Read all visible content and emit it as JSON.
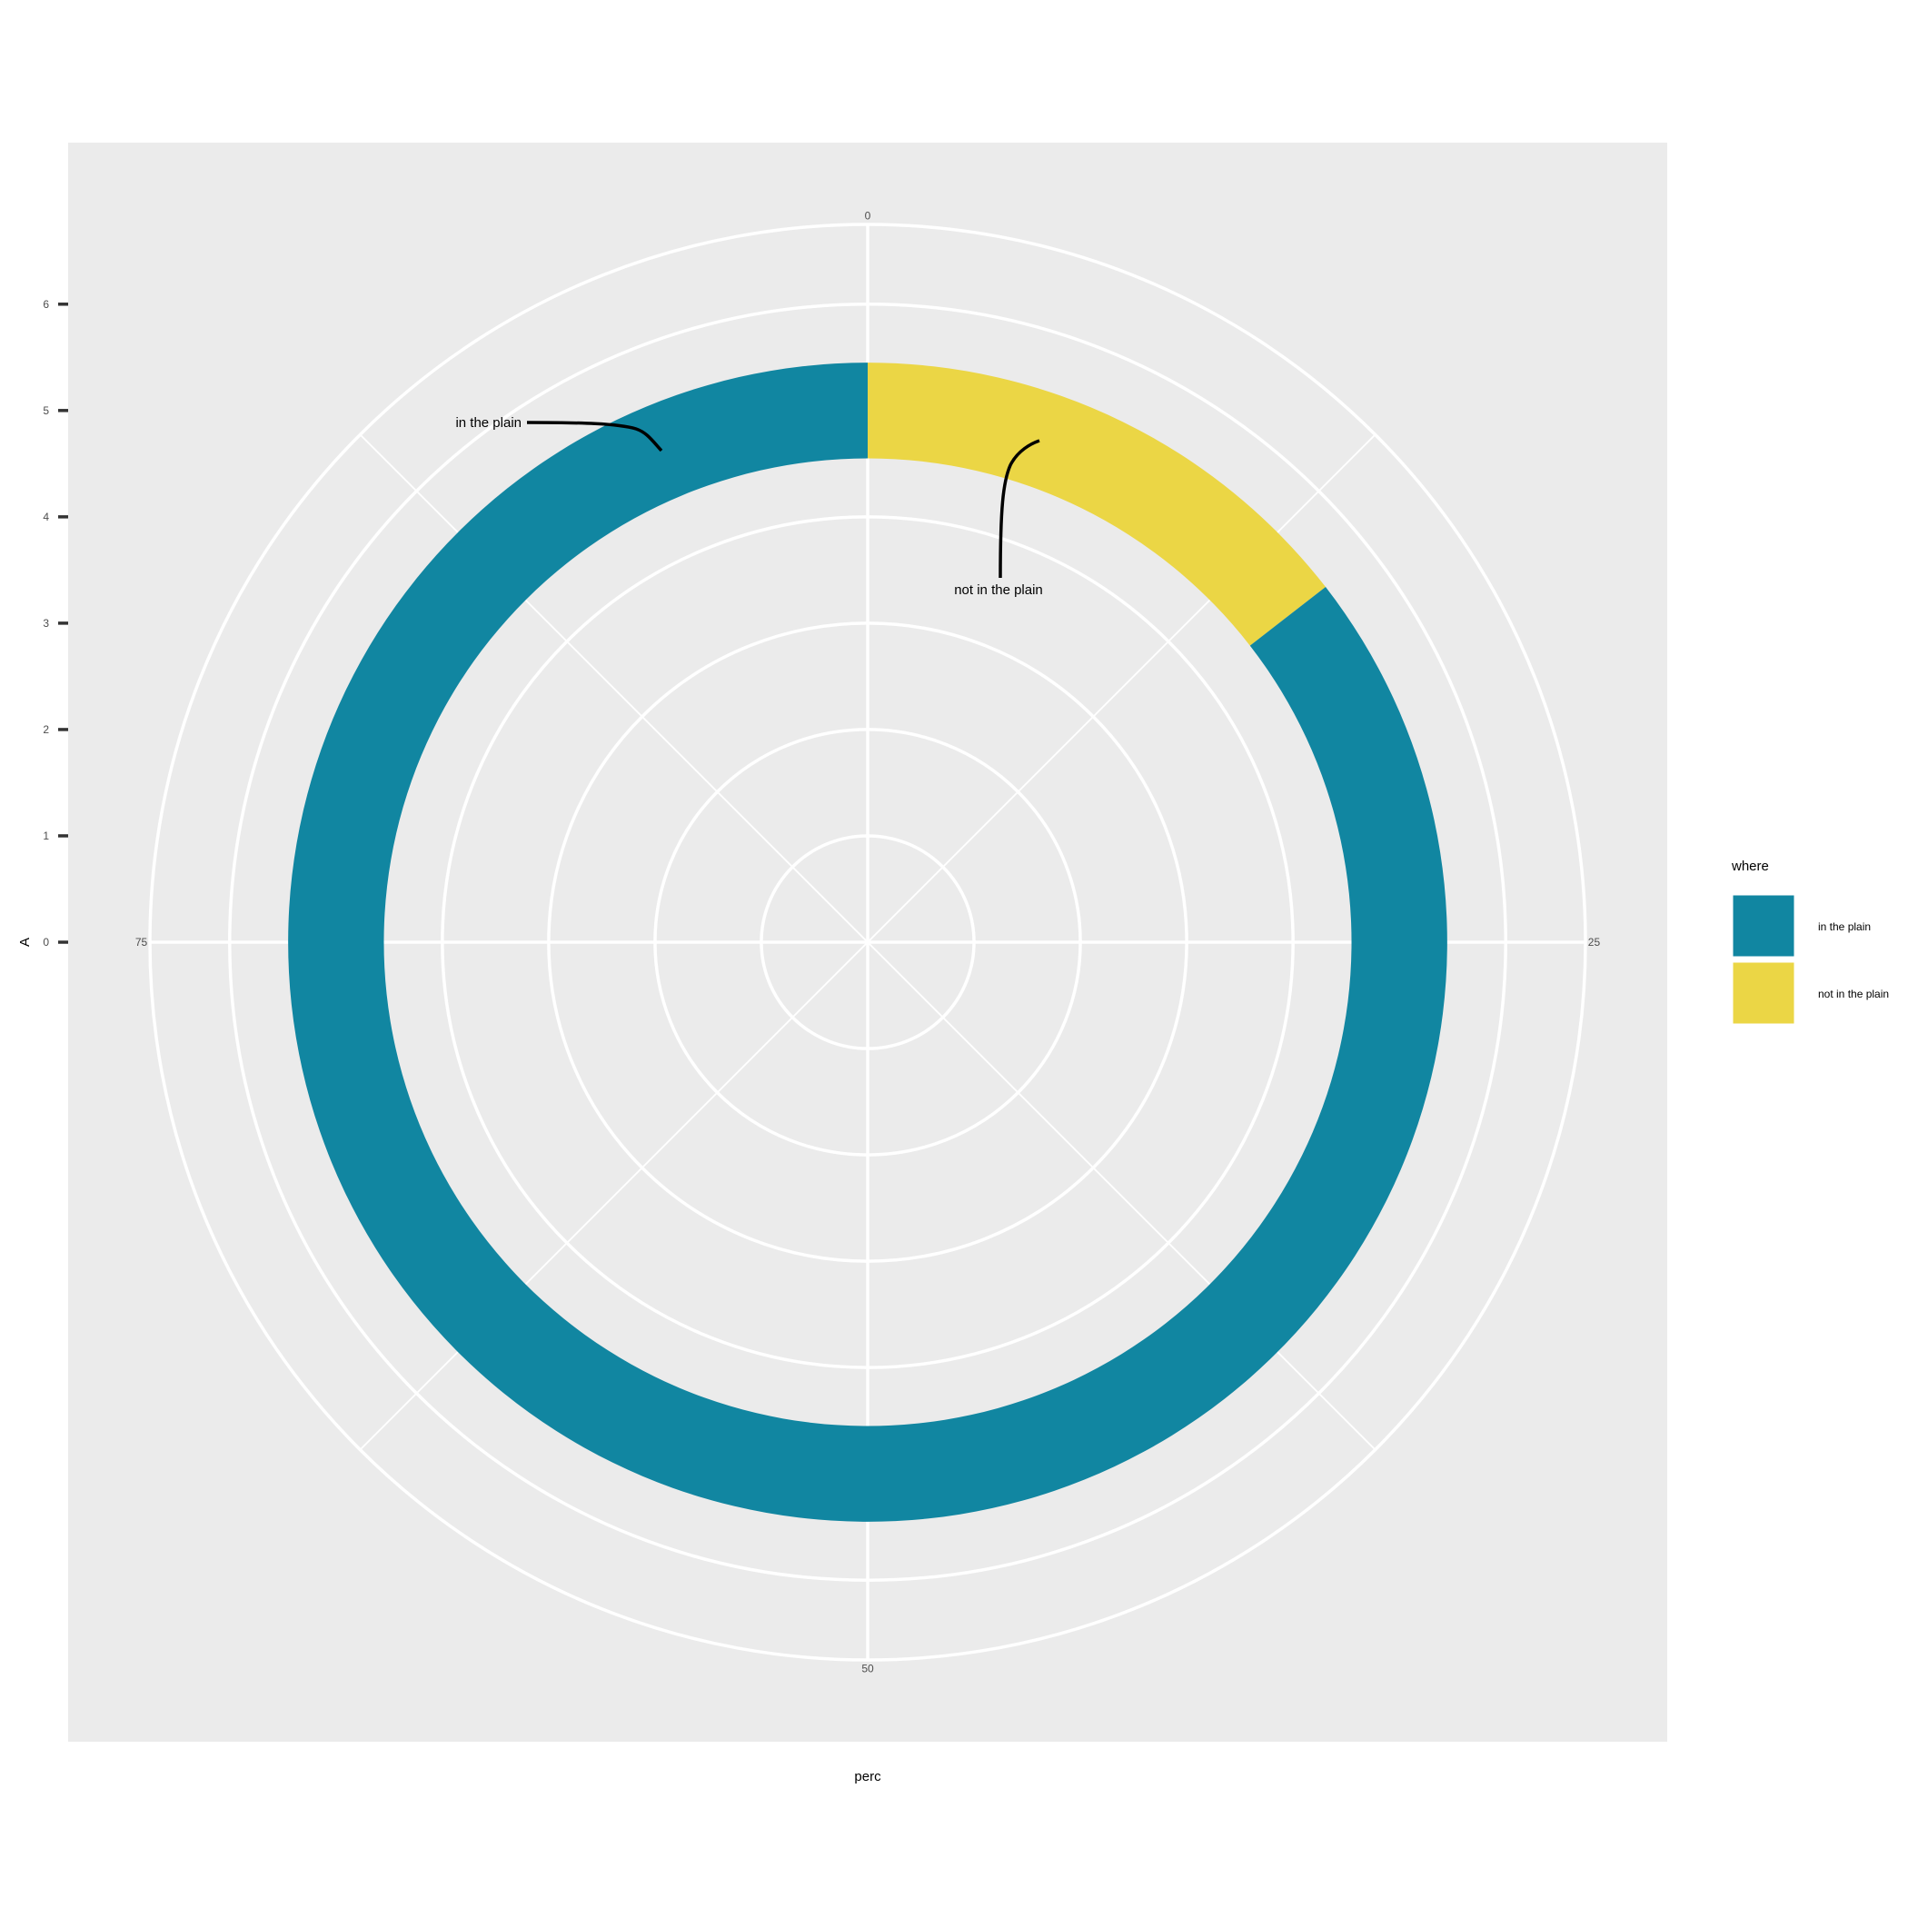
{
  "chart_data": {
    "type": "pie",
    "coord": "polar",
    "xlabel": "perc",
    "ylabel": "A",
    "theta_ticks": [
      "0",
      "25",
      "50",
      "75"
    ],
    "theta_range": [
      0,
      100
    ],
    "r_ticks": [
      "0",
      "1",
      "2",
      "3",
      "4",
      "5",
      "6"
    ],
    "r_range": [
      0,
      6.75
    ],
    "ring_inner": 4.55,
    "ring_outer": 5.45,
    "slices": [
      {
        "label": "not in the plain",
        "start": 0,
        "value": 14.5
      },
      {
        "label": "in the plain",
        "start": 14.5,
        "value": 85.5
      }
    ],
    "legend": {
      "title": "where",
      "position": "right",
      "entries": [
        "in the plain",
        "not in the plain"
      ]
    },
    "annotations": [
      {
        "text": "in the plain",
        "target": "in the plain"
      },
      {
        "text": "not in the plain",
        "target": "not in the plain"
      }
    ],
    "colors": {
      "in the plain": "#1186a1",
      "not in the plain": "#ebd645",
      "panel": "#ebebeb",
      "grid": "#ffffff"
    }
  }
}
